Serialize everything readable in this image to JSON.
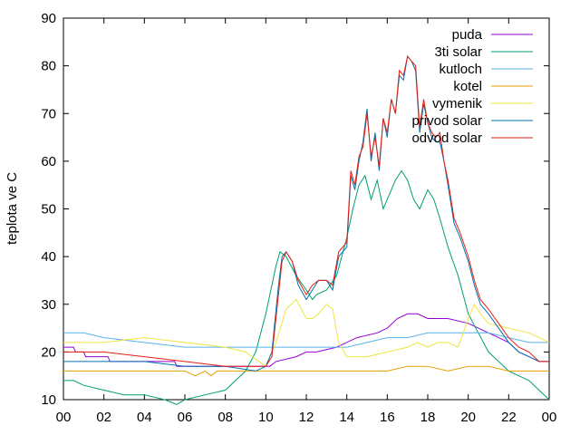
{
  "chart_data": {
    "type": "line",
    "title": "",
    "xlabel": "",
    "ylabel": "teplota ve C",
    "xlim": [
      0,
      24
    ],
    "ylim": [
      10,
      90
    ],
    "x_ticks": [
      "00",
      "02",
      "04",
      "06",
      "08",
      "10",
      "12",
      "14",
      "16",
      "18",
      "20",
      "22",
      "00"
    ],
    "y_ticks": [
      "10",
      "20",
      "30",
      "40",
      "50",
      "60",
      "70",
      "80",
      "90"
    ],
    "grid": false,
    "legend_position": "top-right",
    "series": [
      {
        "name": "puda",
        "color": "#9400d3",
        "x": [
          0,
          0.5,
          0.6,
          1.0,
          1.1,
          2.2,
          2.3,
          3.0,
          3.1,
          5.5,
          5.6,
          10.2,
          10.5,
          11.5,
          12.0,
          12.5,
          13.5,
          14.5,
          15.5,
          16.0,
          16.5,
          17.0,
          17.5,
          18.0,
          19.0,
          20.0,
          20.5,
          21.0,
          21.5,
          22.0,
          22.5,
          23.0,
          23.5,
          24.0
        ],
        "values": [
          21,
          21,
          20,
          20,
          19,
          19,
          18,
          18,
          18,
          18,
          17,
          17,
          18,
          19,
          20,
          20,
          21,
          23,
          24,
          25,
          27,
          28,
          28,
          27,
          27,
          26,
          25,
          24,
          23,
          22,
          20,
          19,
          18,
          18
        ]
      },
      {
        "name": "3ti solar",
        "color": "#009e73",
        "x": [
          0,
          0.5,
          1.0,
          2.0,
          3.0,
          4.0,
          5.0,
          5.6,
          6.0,
          7.0,
          8.0,
          9.0,
          9.5,
          10.0,
          10.5,
          10.7,
          11.0,
          11.5,
          12.0,
          12.3,
          12.5,
          13.0,
          13.5,
          14.0,
          14.3,
          14.6,
          14.9,
          15.2,
          15.5,
          15.8,
          16.1,
          16.4,
          16.7,
          17.0,
          17.3,
          17.6,
          18.0,
          18.3,
          18.6,
          19.0,
          19.5,
          20.0,
          20.5,
          21.0,
          21.5,
          22.0,
          22.5,
          23.0,
          23.5,
          24.0
        ],
        "values": [
          14,
          14,
          13,
          12,
          11,
          11,
          10,
          9,
          10,
          11,
          12,
          16,
          20,
          28,
          38,
          41,
          40,
          36,
          33,
          31,
          32,
          33,
          36,
          44,
          50,
          55,
          57,
          52,
          56,
          50,
          53,
          56,
          58,
          56,
          52,
          50,
          54,
          52,
          48,
          42,
          36,
          28,
          24,
          20,
          18,
          16,
          15,
          14,
          12,
          10
        ]
      },
      {
        "name": "kutloch",
        "color": "#56b4e9",
        "x": [
          0,
          1.0,
          2.0,
          4.0,
          6.0,
          8.0,
          10.0,
          12.0,
          14.0,
          15.0,
          16.0,
          17.0,
          18.0,
          19.0,
          20.0,
          21.0,
          22.0,
          23.0,
          24.0
        ],
        "values": [
          24,
          24,
          23,
          22,
          21,
          21,
          21,
          21,
          21,
          22,
          23,
          23,
          24,
          24,
          24,
          24,
          23,
          22,
          22
        ]
      },
      {
        "name": "kotel",
        "color": "#e69f00",
        "x": [
          0,
          3.0,
          6.0,
          6.5,
          7.0,
          7.3,
          7.6,
          8.0,
          12.0,
          15.0,
          16.0,
          17.0,
          18.0,
          19.0,
          20.0,
          21.0,
          22.0,
          24.0
        ],
        "values": [
          16,
          16,
          16,
          15,
          16,
          15,
          16,
          16,
          16,
          16,
          16,
          17,
          17,
          16,
          17,
          17,
          16,
          16
        ]
      },
      {
        "name": "vymenik",
        "color": "#f0e442",
        "x": [
          0,
          2.0,
          4.0,
          6.0,
          8.0,
          9.0,
          10.0,
          10.5,
          11.0,
          11.5,
          12.0,
          12.3,
          12.6,
          13.0,
          13.3,
          13.6,
          14.0,
          15.0,
          16.0,
          17.0,
          17.5,
          18.0,
          18.5,
          19.0,
          19.5,
          20.0,
          20.3,
          20.6,
          21.0,
          22.0,
          23.0,
          24.0
        ],
        "values": [
          22,
          22,
          23,
          22,
          21,
          20,
          17,
          22,
          29,
          31,
          27,
          27,
          28,
          30,
          29,
          22,
          19,
          19,
          20,
          21,
          22,
          21,
          22,
          22,
          21,
          27,
          30,
          28,
          26,
          25,
          24,
          22
        ]
      },
      {
        "name": "privod solar",
        "color": "#0072b2",
        "x": [
          0,
          2.0,
          4.0,
          6.0,
          8.0,
          9.5,
          10.0,
          10.3,
          10.6,
          10.8,
          11.0,
          11.3,
          11.6,
          12.0,
          12.3,
          12.6,
          13.0,
          13.3,
          13.6,
          14.0,
          14.2,
          14.4,
          14.6,
          14.8,
          15.0,
          15.2,
          15.4,
          15.6,
          15.8,
          16.0,
          16.2,
          16.4,
          16.6,
          16.8,
          17.0,
          17.2,
          17.4,
          17.6,
          17.8,
          18.0,
          18.2,
          18.4,
          18.6,
          18.8,
          19.0,
          19.3,
          19.6,
          20.0,
          20.3,
          20.6,
          21.0,
          21.5,
          22.0,
          22.5,
          23.0,
          23.5,
          24.0
        ],
        "values": [
          18,
          18,
          18,
          17,
          17,
          16,
          17,
          20,
          33,
          40,
          41,
          39,
          34,
          31,
          33,
          35,
          35,
          33,
          40,
          42,
          57,
          54,
          60,
          64,
          71,
          60,
          66,
          58,
          69,
          65,
          73,
          70,
          78,
          77,
          82,
          81,
          79,
          66,
          72,
          68,
          65,
          64,
          64,
          60,
          55,
          47,
          44,
          39,
          34,
          30,
          28,
          25,
          22,
          20,
          19,
          18,
          18
        ]
      },
      {
        "name": "odvod solar",
        "color": "#e51e10",
        "x": [
          0,
          2.0,
          4.0,
          6.0,
          8.0,
          9.5,
          10.0,
          10.3,
          10.6,
          10.8,
          11.0,
          11.3,
          11.6,
          12.0,
          12.3,
          12.6,
          13.0,
          13.3,
          13.6,
          14.0,
          14.2,
          14.4,
          14.6,
          14.8,
          15.0,
          15.2,
          15.4,
          15.6,
          15.8,
          16.0,
          16.2,
          16.4,
          16.6,
          16.8,
          17.0,
          17.2,
          17.4,
          17.6,
          17.8,
          18.0,
          18.2,
          18.4,
          18.6,
          18.8,
          19.0,
          19.3,
          19.6,
          20.0,
          20.3,
          20.6,
          21.0,
          21.5,
          22.0,
          22.5,
          23.0,
          23.5,
          24.0
        ],
        "values": [
          20,
          20,
          19,
          18,
          17,
          17,
          17,
          19,
          31,
          39,
          41,
          39,
          35,
          32,
          34,
          35,
          35,
          34,
          41,
          43,
          58,
          55,
          61,
          63,
          70,
          61,
          65,
          59,
          69,
          66,
          73,
          70,
          79,
          78,
          82,
          81,
          80,
          67,
          73,
          68,
          66,
          65,
          66,
          60,
          56,
          48,
          45,
          40,
          35,
          31,
          29,
          26,
          23,
          21,
          20,
          18,
          18
        ]
      }
    ]
  }
}
